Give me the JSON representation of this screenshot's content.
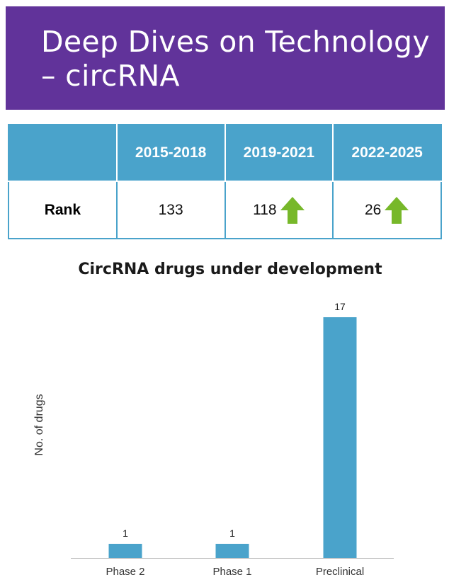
{
  "header": {
    "title": "Deep Dives on Technology – circRNA"
  },
  "rank_table": {
    "columns": [
      "",
      "2015-2018",
      "2019-2021",
      "2022-2025"
    ],
    "row_label": "Rank",
    "values": [
      "133",
      "118",
      "26"
    ],
    "trend_icons": [
      "",
      "up-arrow-icon",
      "up-arrow-icon"
    ]
  },
  "colors": {
    "header_bg": "#61339a",
    "table_accent": "#4aa3cb",
    "arrow": "#77b82a",
    "bar": "#4aa3cb"
  },
  "chart_data": {
    "type": "bar",
    "title": "CircRNA drugs under development",
    "xlabel": "",
    "ylabel": "No. of drugs",
    "categories": [
      "Phase 2",
      "Phase 1",
      "Preclinical"
    ],
    "values": [
      1,
      1,
      17
    ],
    "data_labels": [
      "1",
      "1",
      "17"
    ],
    "ylim": [
      0,
      18
    ],
    "grid": false,
    "legend": "none"
  }
}
